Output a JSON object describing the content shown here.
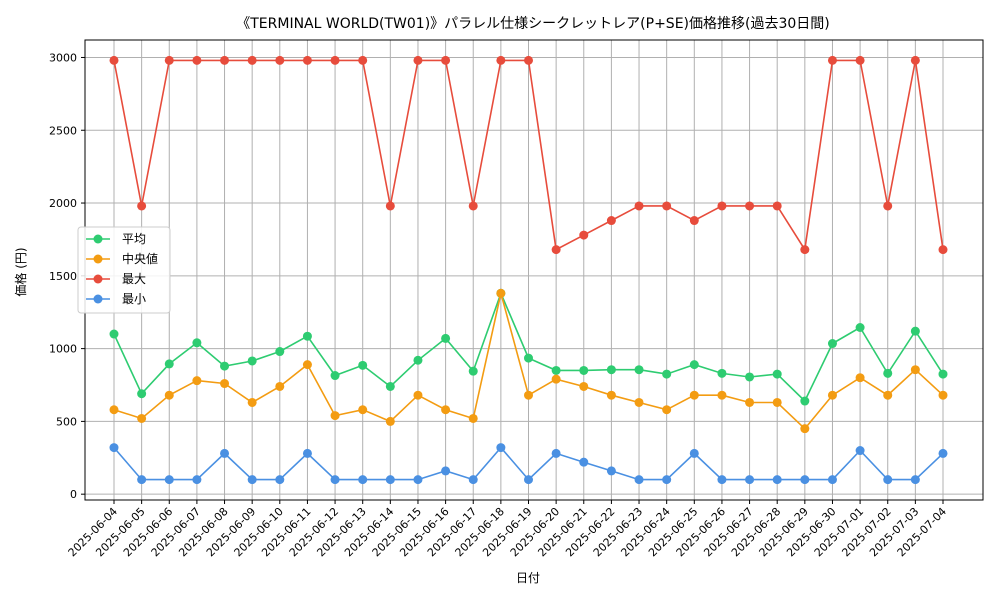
{
  "chart_data": {
    "type": "line",
    "title": "《TERMINAL WORLD(TW01)》パラレル仕様シークレットレア(P+SE)価格推移(過去30日間)",
    "xlabel": "日付",
    "ylabel": "価格 (円)",
    "ylim": [
      -40,
      3120
    ],
    "yticks": [
      0,
      500,
      1000,
      1500,
      2000,
      2500,
      3000
    ],
    "grid": true,
    "legend_position": "center-left",
    "categories": [
      "2025-06-04",
      "2025-06-05",
      "2025-06-06",
      "2025-06-07",
      "2025-06-08",
      "2025-06-09",
      "2025-06-10",
      "2025-06-11",
      "2025-06-12",
      "2025-06-13",
      "2025-06-14",
      "2025-06-15",
      "2025-06-16",
      "2025-06-17",
      "2025-06-18",
      "2025-06-19",
      "2025-06-20",
      "2025-06-21",
      "2025-06-22",
      "2025-06-23",
      "2025-06-24",
      "2025-06-25",
      "2025-06-26",
      "2025-06-27",
      "2025-06-28",
      "2025-06-29",
      "2025-06-30",
      "2025-07-01",
      "2025-07-02",
      "2025-07-03",
      "2025-07-04"
    ],
    "series": [
      {
        "name": "平均",
        "color": "#2ecc71",
        "values": [
          1100,
          690,
          895,
          1040,
          880,
          915,
          980,
          1085,
          815,
          885,
          740,
          920,
          1070,
          845,
          1380,
          935,
          850,
          850,
          855,
          855,
          825,
          890,
          830,
          805,
          825,
          640,
          1035,
          1145,
          830,
          1120,
          825
        ]
      },
      {
        "name": "中央値",
        "color": "#f39c12",
        "values": [
          580,
          520,
          680,
          780,
          760,
          630,
          740,
          890,
          540,
          580,
          500,
          680,
          580,
          520,
          1380,
          680,
          790,
          740,
          680,
          630,
          580,
          680,
          680,
          630,
          630,
          450,
          680,
          800,
          680,
          855,
          680
        ]
      },
      {
        "name": "最大",
        "color": "#e74c3c",
        "values": [
          2980,
          1980,
          2980,
          2980,
          2980,
          2980,
          2980,
          2980,
          2980,
          2980,
          1980,
          2980,
          2980,
          1980,
          2980,
          2980,
          1680,
          1780,
          1880,
          1980,
          1980,
          1880,
          1980,
          1980,
          1980,
          1680,
          2980,
          2980,
          1980,
          2980,
          1680
        ]
      },
      {
        "name": "最小",
        "color": "#4a90e2",
        "values": [
          320,
          100,
          100,
          100,
          280,
          100,
          100,
          280,
          100,
          100,
          100,
          100,
          160,
          100,
          320,
          100,
          280,
          220,
          160,
          100,
          100,
          280,
          100,
          100,
          100,
          100,
          100,
          300,
          100,
          100,
          280
        ]
      }
    ]
  }
}
